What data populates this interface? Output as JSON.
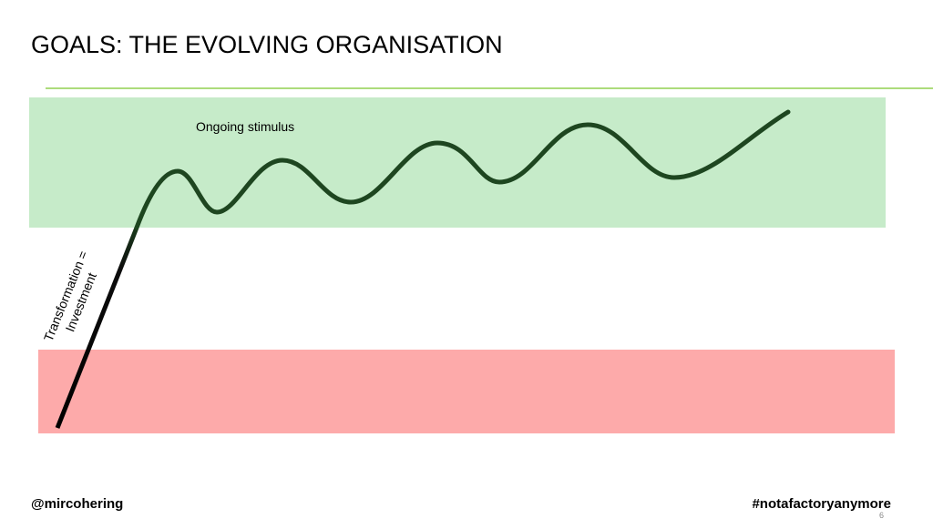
{
  "title": "GOALS: THE EVOLVING ORGANISATION",
  "labels": {
    "stimulus": "Ongoing stimulus",
    "transformation": [
      "Transformation =",
      "Investment"
    ]
  },
  "footer": {
    "left": "@mircohering",
    "right": "#notafactoryanymore",
    "page": "6"
  }
}
